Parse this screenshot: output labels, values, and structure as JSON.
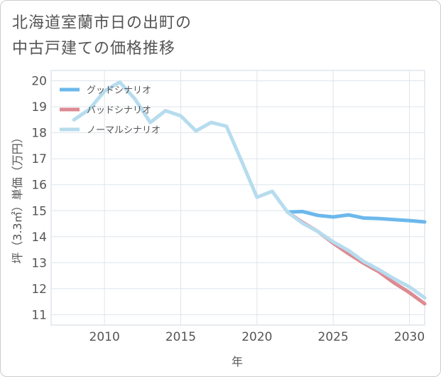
{
  "title_lines": [
    "北海道室蘭市日の出町の",
    "中古戸建ての価格推移"
  ],
  "chart_data": {
    "type": "line",
    "title": "北海道室蘭市日の出町の中古戸建ての価格推移",
    "xlabel": "年",
    "ylabel": "坪（3.3㎡）単価（万円）",
    "xlim": [
      2006.5,
      2031
    ],
    "ylim": [
      10.6,
      20.4
    ],
    "xticks": [
      2010,
      2015,
      2020,
      2025,
      2030
    ],
    "yticks": [
      11,
      12,
      13,
      14,
      15,
      16,
      17,
      18,
      19,
      20
    ],
    "grid": true,
    "legend_position": "top-left",
    "series": [
      {
        "name": "グッドシナリオ",
        "color": "#6cb8ec",
        "x": [
          2022,
          2023,
          2024,
          2025,
          2026,
          2027,
          2028,
          2029,
          2030,
          2031
        ],
        "values": [
          14.95,
          14.97,
          14.82,
          14.76,
          14.84,
          14.72,
          14.7,
          14.66,
          14.62,
          14.57
        ]
      },
      {
        "name": "バッドシナリオ",
        "color": "#de8a92",
        "x": [
          2022,
          2023,
          2024,
          2025,
          2026,
          2027,
          2028,
          2029,
          2030,
          2031
        ],
        "values": [
          14.95,
          14.55,
          14.2,
          13.75,
          13.35,
          12.98,
          12.65,
          12.22,
          11.85,
          11.42
        ]
      },
      {
        "name": "ノーマルシナリオ",
        "color": "#b6dcee",
        "x": [
          2008,
          2009,
          2010,
          2011,
          2012,
          2013,
          2014,
          2015,
          2016,
          2017,
          2018,
          2019,
          2020,
          2021,
          2022,
          2023,
          2024,
          2025,
          2026,
          2027,
          2028,
          2029,
          2030,
          2031
        ],
        "values": [
          18.5,
          18.9,
          19.6,
          19.95,
          19.3,
          18.4,
          18.85,
          18.65,
          18.07,
          18.4,
          18.25,
          16.9,
          15.52,
          15.75,
          14.95,
          14.52,
          14.2,
          13.8,
          13.47,
          13.05,
          12.73,
          12.38,
          12.07,
          11.65
        ]
      }
    ]
  }
}
